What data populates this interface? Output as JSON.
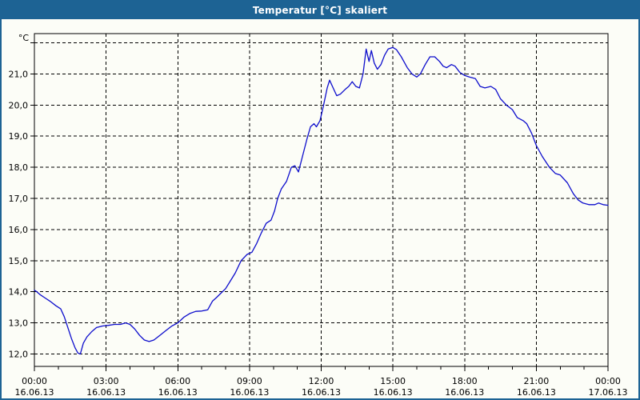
{
  "window": {
    "title": "Temperatur [°C] skaliert"
  },
  "colors": {
    "titlebar": "#1d6394",
    "window_border": "#1d6394",
    "background": "#fcfdf7",
    "grid": "#000000",
    "axis": "#000000",
    "text": "#000000",
    "curve": "#0d0dcc"
  },
  "chart_data": {
    "type": "line",
    "title": "Temperatur [°C] skaliert",
    "ylabel": "°C",
    "xlabel": "",
    "grid": "dashed both",
    "legend": "none",
    "xlim_hours": [
      0,
      24
    ],
    "ylim": [
      11.6,
      22.3
    ],
    "y_ticks": [
      {
        "value": 12,
        "label": "12,0"
      },
      {
        "value": 13,
        "label": "13,0"
      },
      {
        "value": 14,
        "label": "14,0"
      },
      {
        "value": 15,
        "label": "15,0"
      },
      {
        "value": 16,
        "label": "16,0"
      },
      {
        "value": 17,
        "label": "17,0"
      },
      {
        "value": 18,
        "label": "18,0"
      },
      {
        "value": 19,
        "label": "19,0"
      },
      {
        "value": 20,
        "label": "20,0"
      },
      {
        "value": 21,
        "label": "21,0"
      },
      {
        "value": 22,
        "label": ""
      }
    ],
    "x_ticks": [
      {
        "hour": 0,
        "time": "00:00",
        "date": "16.06.13"
      },
      {
        "hour": 3,
        "time": "03:00",
        "date": "16.06.13"
      },
      {
        "hour": 6,
        "time": "06:00",
        "date": "16.06.13"
      },
      {
        "hour": 9,
        "time": "09:00",
        "date": "16.06.13"
      },
      {
        "hour": 12,
        "time": "12:00",
        "date": "16.06.13"
      },
      {
        "hour": 15,
        "time": "15:00",
        "date": "16.06.13"
      },
      {
        "hour": 18,
        "time": "18:00",
        "date": "16.06.13"
      },
      {
        "hour": 21,
        "time": "21:00",
        "date": "16.06.13"
      },
      {
        "hour": 24,
        "time": "00:00",
        "date": "17.06.13"
      }
    ],
    "minor_tick_every_hours": 1,
    "series": [
      {
        "name": "Temperatur",
        "color": "#0d0dcc",
        "points": [
          [
            0.0,
            14.05
          ],
          [
            0.1,
            14.0
          ],
          [
            0.25,
            13.9
          ],
          [
            0.45,
            13.8
          ],
          [
            0.65,
            13.7
          ],
          [
            0.9,
            13.55
          ],
          [
            1.1,
            13.45
          ],
          [
            1.25,
            13.2
          ],
          [
            1.4,
            12.85
          ],
          [
            1.55,
            12.5
          ],
          [
            1.7,
            12.2
          ],
          [
            1.82,
            12.03
          ],
          [
            1.92,
            12.0
          ],
          [
            2.05,
            12.35
          ],
          [
            2.2,
            12.55
          ],
          [
            2.4,
            12.72
          ],
          [
            2.6,
            12.85
          ],
          [
            2.85,
            12.9
          ],
          [
            3.1,
            12.92
          ],
          [
            3.35,
            12.95
          ],
          [
            3.6,
            12.95
          ],
          [
            3.82,
            13.0
          ],
          [
            4.0,
            12.95
          ],
          [
            4.2,
            12.8
          ],
          [
            4.4,
            12.6
          ],
          [
            4.6,
            12.45
          ],
          [
            4.8,
            12.4
          ],
          [
            5.0,
            12.45
          ],
          [
            5.25,
            12.6
          ],
          [
            5.5,
            12.75
          ],
          [
            5.75,
            12.9
          ],
          [
            6.0,
            13.0
          ],
          [
            6.25,
            13.18
          ],
          [
            6.5,
            13.3
          ],
          [
            6.75,
            13.37
          ],
          [
            7.0,
            13.38
          ],
          [
            7.25,
            13.42
          ],
          [
            7.45,
            13.7
          ],
          [
            7.6,
            13.8
          ],
          [
            7.8,
            13.95
          ],
          [
            8.0,
            14.1
          ],
          [
            8.2,
            14.35
          ],
          [
            8.4,
            14.6
          ],
          [
            8.65,
            15.0
          ],
          [
            8.9,
            15.2
          ],
          [
            9.1,
            15.27
          ],
          [
            9.3,
            15.55
          ],
          [
            9.5,
            15.9
          ],
          [
            9.7,
            16.2
          ],
          [
            9.9,
            16.3
          ],
          [
            10.05,
            16.6
          ],
          [
            10.18,
            17.0
          ],
          [
            10.33,
            17.3
          ],
          [
            10.55,
            17.55
          ],
          [
            10.75,
            18.0
          ],
          [
            10.9,
            18.05
          ],
          [
            11.05,
            17.85
          ],
          [
            11.2,
            18.3
          ],
          [
            11.4,
            18.9
          ],
          [
            11.55,
            19.3
          ],
          [
            11.7,
            19.4
          ],
          [
            11.8,
            19.3
          ],
          [
            11.95,
            19.5
          ],
          [
            12.1,
            20.0
          ],
          [
            12.25,
            20.55
          ],
          [
            12.35,
            20.8
          ],
          [
            12.5,
            20.55
          ],
          [
            12.65,
            20.3
          ],
          [
            12.8,
            20.35
          ],
          [
            13.0,
            20.5
          ],
          [
            13.15,
            20.6
          ],
          [
            13.3,
            20.75
          ],
          [
            13.45,
            20.6
          ],
          [
            13.6,
            20.55
          ],
          [
            13.75,
            21.0
          ],
          [
            13.88,
            21.8
          ],
          [
            14.0,
            21.4
          ],
          [
            14.1,
            21.75
          ],
          [
            14.22,
            21.35
          ],
          [
            14.35,
            21.15
          ],
          [
            14.5,
            21.3
          ],
          [
            14.65,
            21.6
          ],
          [
            14.8,
            21.8
          ],
          [
            15.0,
            21.85
          ],
          [
            15.15,
            21.78
          ],
          [
            15.35,
            21.55
          ],
          [
            15.6,
            21.2
          ],
          [
            15.8,
            21.0
          ],
          [
            16.0,
            20.9
          ],
          [
            16.15,
            21.0
          ],
          [
            16.35,
            21.3
          ],
          [
            16.55,
            21.55
          ],
          [
            16.75,
            21.55
          ],
          [
            16.95,
            21.4
          ],
          [
            17.1,
            21.25
          ],
          [
            17.25,
            21.2
          ],
          [
            17.45,
            21.3
          ],
          [
            17.6,
            21.25
          ],
          [
            17.8,
            21.05
          ],
          [
            18.0,
            20.95
          ],
          [
            18.2,
            20.9
          ],
          [
            18.45,
            20.85
          ],
          [
            18.65,
            20.6
          ],
          [
            18.85,
            20.55
          ],
          [
            19.1,
            20.6
          ],
          [
            19.3,
            20.5
          ],
          [
            19.5,
            20.2
          ],
          [
            19.75,
            20.0
          ],
          [
            20.0,
            19.85
          ],
          [
            20.2,
            19.6
          ],
          [
            20.45,
            19.5
          ],
          [
            20.6,
            19.4
          ],
          [
            20.8,
            19.1
          ],
          [
            21.0,
            18.7
          ],
          [
            21.25,
            18.35
          ],
          [
            21.55,
            18.0
          ],
          [
            21.8,
            17.8
          ],
          [
            22.0,
            17.75
          ],
          [
            22.3,
            17.5
          ],
          [
            22.55,
            17.15
          ],
          [
            22.75,
            16.95
          ],
          [
            22.95,
            16.85
          ],
          [
            23.2,
            16.8
          ],
          [
            23.45,
            16.8
          ],
          [
            23.6,
            16.85
          ],
          [
            23.8,
            16.8
          ],
          [
            24.0,
            16.78
          ]
        ]
      }
    ]
  }
}
